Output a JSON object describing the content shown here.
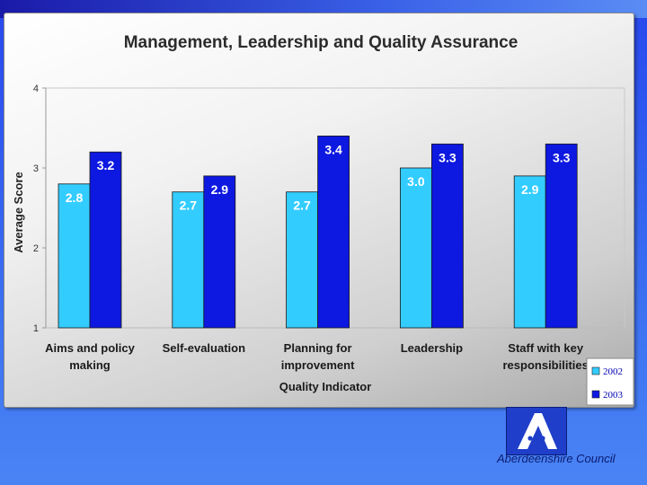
{
  "colors": {
    "series_2002": "#33ccff",
    "series_2003": "#0d18e0",
    "label_bg_2002": "#33ccff",
    "label_bg_2003": "#0d18e0"
  },
  "icons": {
    "logo": "aberdeenshire-a-logo-icon"
  },
  "footer": {
    "organisation": "Aberdeenshire Council"
  },
  "chart_data": {
    "type": "bar",
    "title": "Management, Leadership and Quality Assurance",
    "xlabel": "Quality Indicator",
    "ylabel": "Average Score",
    "ylim": [
      1,
      4
    ],
    "yticks": [
      "1",
      "2",
      "3",
      "4"
    ],
    "categories": [
      [
        "Aims and policy",
        "making"
      ],
      [
        "Self-evaluation"
      ],
      [
        "Planning for",
        "improvement"
      ],
      [
        "Leadership"
      ],
      [
        "Staff with key",
        "responsibilities"
      ]
    ],
    "series": [
      {
        "name": "2002",
        "values": [
          2.8,
          2.7,
          2.7,
          3.0,
          2.9
        ],
        "labels": [
          "2.8",
          "2.7",
          "2.7",
          "3.0",
          "2.9"
        ]
      },
      {
        "name": "2003",
        "values": [
          3.2,
          2.9,
          3.4,
          3.3,
          3.3
        ],
        "labels": [
          "3.2",
          "2.9",
          "3.4",
          "3.3",
          "3.3"
        ]
      }
    ],
    "legend_position": "bottom-right",
    "grid": false
  }
}
